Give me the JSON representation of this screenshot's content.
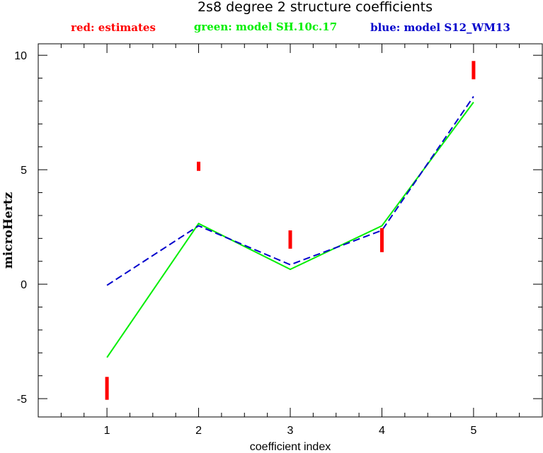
{
  "chart_data": {
    "type": "line",
    "title": "2s8 degree 2 structure coefficients",
    "xlabel": "coefficient index",
    "ylabel": "microHertz",
    "xlim": [
      0.25,
      5.75
    ],
    "ylim": [
      -5.8,
      10.5
    ],
    "x_ticks": [
      1,
      2,
      3,
      4,
      5
    ],
    "y_ticks": [
      -5,
      0,
      5,
      10
    ],
    "legend": [
      {
        "label": "red: estimates",
        "color": "#ff0000"
      },
      {
        "label": "green: model SH.10c.17",
        "color": "#00ee00"
      },
      {
        "label": "blue: model S12_WM13",
        "color": "#0000cc"
      }
    ],
    "series": [
      {
        "name": "green: model SH.10c.17",
        "color": "#00ee00",
        "style": "solid",
        "x": [
          1,
          2,
          3,
          4,
          5
        ],
        "values": [
          -3.2,
          2.65,
          0.65,
          2.55,
          7.95
        ]
      },
      {
        "name": "blue: model S12_WM13",
        "color": "#0000cc",
        "style": "dashed",
        "x": [
          1,
          2,
          3,
          4,
          5
        ],
        "values": [
          -0.05,
          2.55,
          0.85,
          2.35,
          8.2
        ]
      }
    ],
    "estimates": {
      "name": "red: estimates",
      "color": "#ff0000",
      "x": [
        1,
        2,
        3,
        4,
        5
      ],
      "low": [
        -5.05,
        4.95,
        1.55,
        1.4,
        8.95
      ],
      "high": [
        -4.05,
        5.35,
        2.35,
        2.45,
        9.75
      ]
    },
    "grid": false,
    "legend_placement": "top"
  }
}
